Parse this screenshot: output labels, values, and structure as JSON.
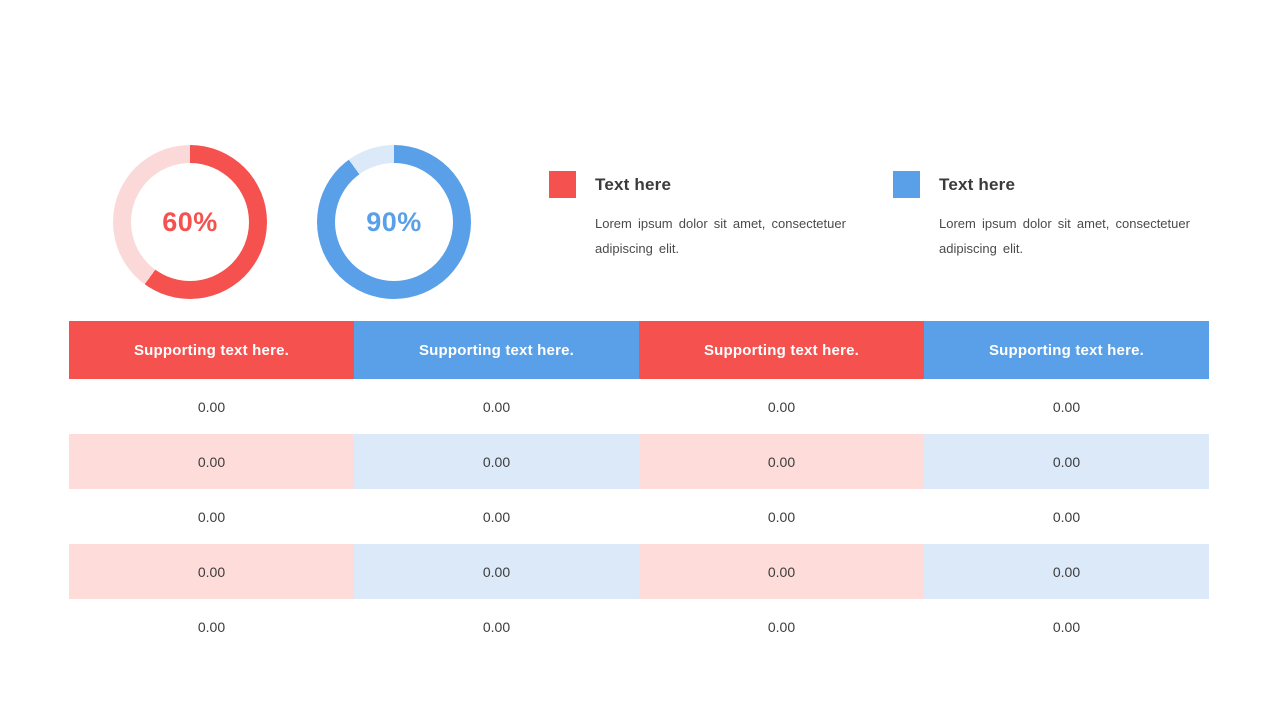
{
  "colors": {
    "red": "#F5514E",
    "red_track": "#FAD9D8",
    "blue": "#5AA0E8",
    "blue_track": "#DCE9F8",
    "row_tint_red": "#FDDCDA",
    "row_tint_blue": "#DBE9F9",
    "title_text": "#3B3B3B",
    "body_text": "#4B4B4B",
    "cell_text": "#3C3C3C",
    "header_text": "#FFFFFF"
  },
  "donuts": [
    {
      "name": "red-donut",
      "value": 60,
      "label": "60%",
      "color": "#F5514E",
      "track_color": "#FAD9D8"
    },
    {
      "name": "blue-donut",
      "value": 90,
      "label": "90%",
      "color": "#5AA0E8",
      "track_color": "#DCE9F8"
    }
  ],
  "legends": [
    {
      "title": "Text here",
      "description": "Lorem ipsum dolor sit amet, consectetuer adipiscing elit.",
      "color": "#F5514E"
    },
    {
      "title": "Text here",
      "description": "Lorem ipsum dolor sit amet, consectetuer adipiscing elit.",
      "color": "#5AA0E8"
    }
  ],
  "table": {
    "headers": [
      {
        "label": "Supporting text here.",
        "color": "#F5514E"
      },
      {
        "label": "Supporting text here.",
        "color": "#5AA0E8"
      },
      {
        "label": "Supporting text here.",
        "color": "#F5514E"
      },
      {
        "label": "Supporting text here.",
        "color": "#5AA0E8"
      }
    ],
    "tint_colors": [
      "#FDDCDA",
      "#DBE9F9",
      "#FDDCDA",
      "#DBE9F9"
    ],
    "rows": [
      {
        "tinted": false,
        "cells": [
          "0.00",
          "0.00",
          "0.00",
          "0.00"
        ]
      },
      {
        "tinted": true,
        "cells": [
          "0.00",
          "0.00",
          "0.00",
          "0.00"
        ]
      },
      {
        "tinted": false,
        "cells": [
          "0.00",
          "0.00",
          "0.00",
          "0.00"
        ]
      },
      {
        "tinted": true,
        "cells": [
          "0.00",
          "0.00",
          "0.00",
          "0.00"
        ]
      },
      {
        "tinted": false,
        "cells": [
          "0.00",
          "0.00",
          "0.00",
          "0.00"
        ]
      }
    ]
  },
  "chart_data": [
    {
      "type": "pie",
      "subtype": "donut",
      "title": "",
      "labels": [
        "filled",
        "remainder"
      ],
      "values": [
        60,
        40
      ],
      "center_label": "60%",
      "colors": [
        "#F5514E",
        "#FAD9D8"
      ],
      "start_angle_deg": 0,
      "direction": "clockwise"
    },
    {
      "type": "pie",
      "subtype": "donut",
      "title": "",
      "labels": [
        "filled",
        "remainder"
      ],
      "values": [
        90,
        10
      ],
      "center_label": "90%",
      "colors": [
        "#5AA0E8",
        "#DCE9F8"
      ],
      "start_angle_deg": 0,
      "direction": "clockwise"
    },
    {
      "type": "table",
      "columns": [
        "Supporting text here.",
        "Supporting text here.",
        "Supporting text here.",
        "Supporting text here."
      ],
      "rows": [
        [
          "0.00",
          "0.00",
          "0.00",
          "0.00"
        ],
        [
          "0.00",
          "0.00",
          "0.00",
          "0.00"
        ],
        [
          "0.00",
          "0.00",
          "0.00",
          "0.00"
        ],
        [
          "0.00",
          "0.00",
          "0.00",
          "0.00"
        ],
        [
          "0.00",
          "0.00",
          "0.00",
          "0.00"
        ]
      ]
    }
  ]
}
